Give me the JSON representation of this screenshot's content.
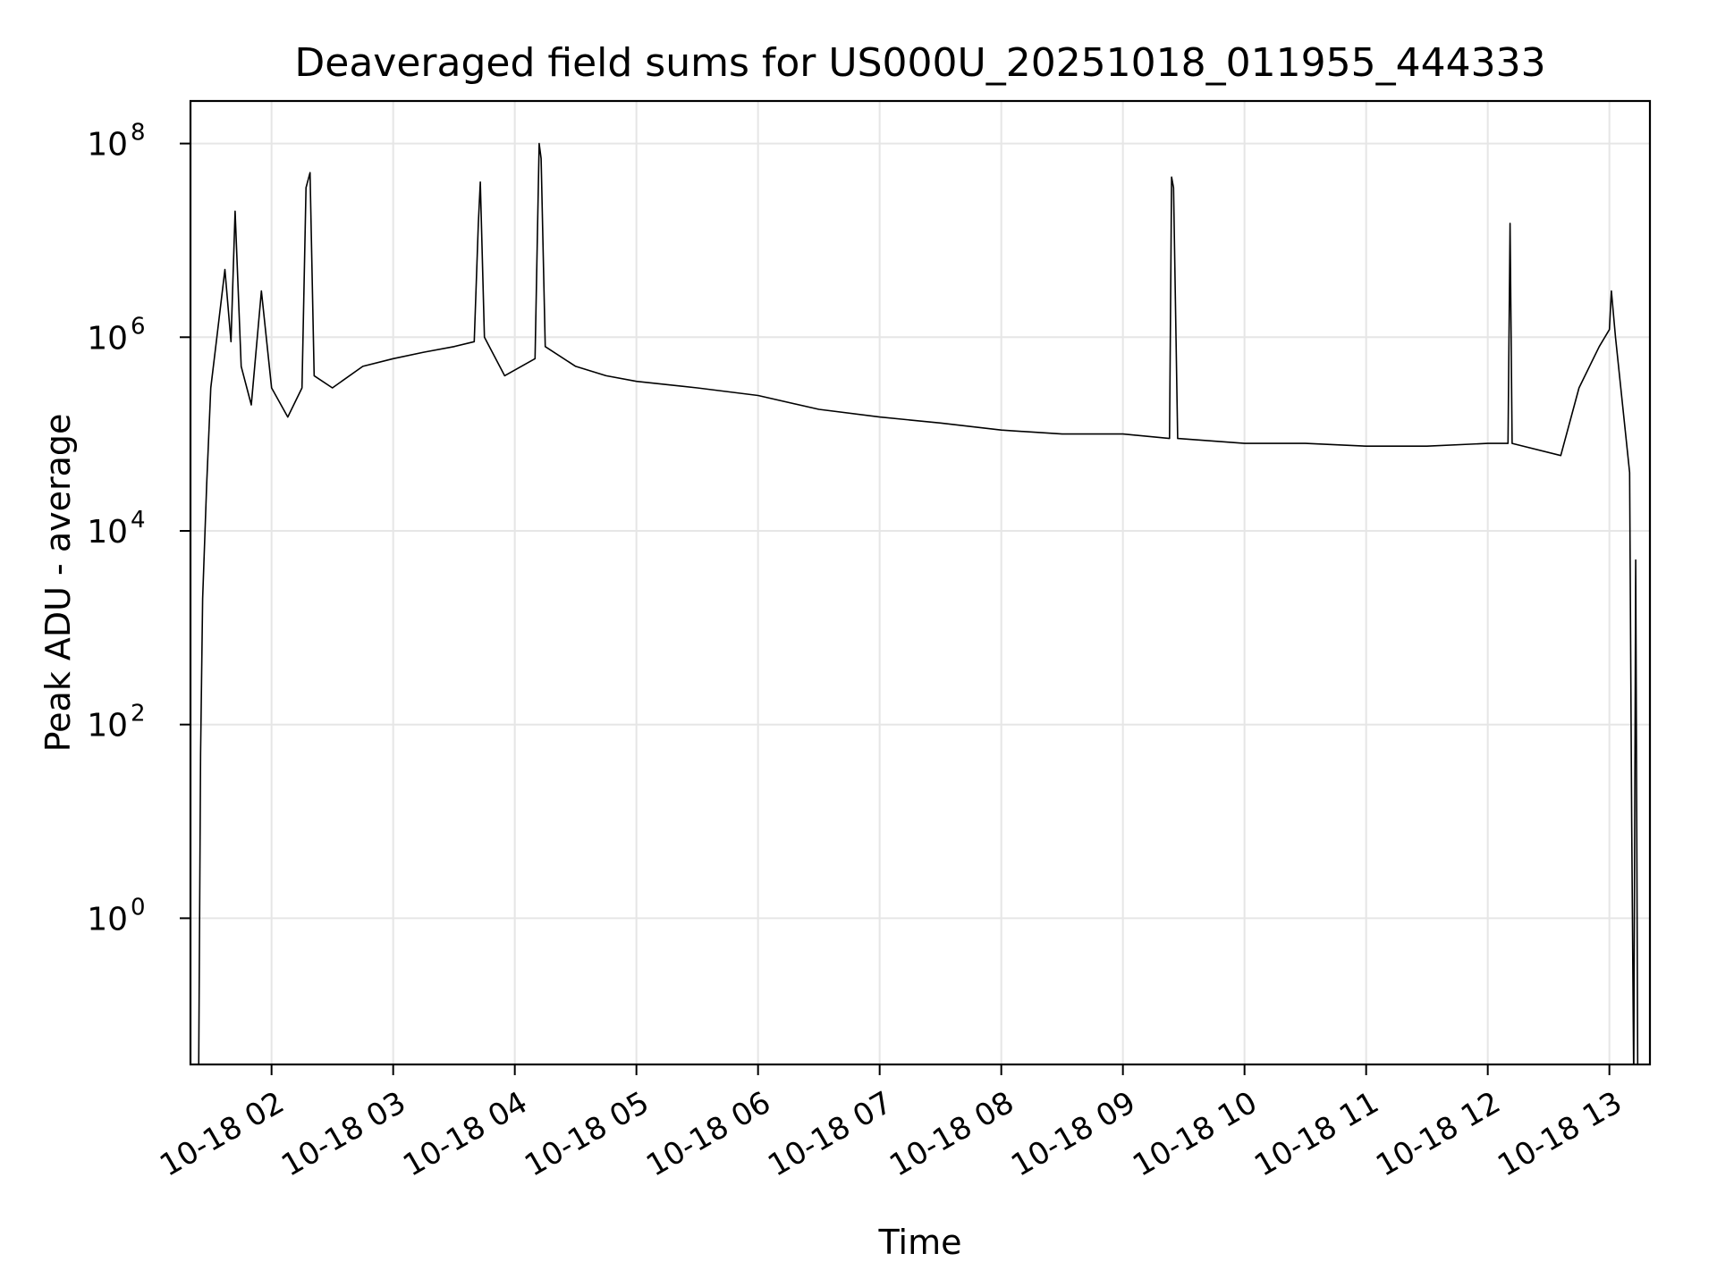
{
  "chart_data": {
    "type": "line",
    "title": "Deaveraged field sums for US000U_20251018_011955_444333",
    "xlabel": "Time",
    "ylabel": "Peak ADU - average",
    "xscale": "time",
    "yscale": "log",
    "xlim": [
      "2025-10-18 01:20",
      "2025-10-18 13:20"
    ],
    "ylim": [
      0.0309,
      275000000
    ],
    "grid": true,
    "legend": "none",
    "line_color": "#000000",
    "x_ticks": [
      "10-18 02",
      "10-18 03",
      "10-18 04",
      "10-18 05",
      "10-18 06",
      "10-18 07",
      "10-18 08",
      "10-18 09",
      "10-18 10",
      "10-18 11",
      "10-18 12",
      "10-18 13"
    ],
    "x_tick_times": [
      "2025-10-18 02:00",
      "2025-10-18 03:00",
      "2025-10-18 04:00",
      "2025-10-18 05:00",
      "2025-10-18 06:00",
      "2025-10-18 07:00",
      "2025-10-18 08:00",
      "2025-10-18 09:00",
      "2025-10-18 10:00",
      "2025-10-18 11:00",
      "2025-10-18 12:00",
      "2025-10-18 13:00"
    ],
    "y_ticks": [
      {
        "value": 1,
        "base": "10",
        "exp": "0"
      },
      {
        "value": 100,
        "base": "10",
        "exp": "2"
      },
      {
        "value": 10000,
        "base": "10",
        "exp": "4"
      },
      {
        "value": 1000000,
        "base": "10",
        "exp": "6"
      },
      {
        "value": 100000000,
        "base": "10",
        "exp": "8"
      }
    ],
    "series": [
      {
        "name": "",
        "points": [
          [
            "2025-10-18 01:24",
            0.02
          ],
          [
            "2025-10-18 01:25",
            50
          ],
          [
            "2025-10-18 01:26",
            2000
          ],
          [
            "2025-10-18 01:28",
            30000
          ],
          [
            "2025-10-18 01:30",
            300000
          ],
          [
            "2025-10-18 01:33",
            1000000
          ],
          [
            "2025-10-18 01:37",
            5000000
          ],
          [
            "2025-10-18 01:40",
            900000
          ],
          [
            "2025-10-18 01:42",
            20000000
          ],
          [
            "2025-10-18 01:45",
            500000
          ],
          [
            "2025-10-18 01:50",
            200000
          ],
          [
            "2025-10-18 01:55",
            3000000
          ],
          [
            "2025-10-18 02:00",
            300000
          ],
          [
            "2025-10-18 02:08",
            150000
          ],
          [
            "2025-10-18 02:15",
            300000
          ],
          [
            "2025-10-18 02:17",
            35000000
          ],
          [
            "2025-10-18 02:19",
            50000000
          ],
          [
            "2025-10-18 02:21",
            400000
          ],
          [
            "2025-10-18 02:30",
            300000
          ],
          [
            "2025-10-18 02:45",
            500000
          ],
          [
            "2025-10-18 03:00",
            600000
          ],
          [
            "2025-10-18 03:15",
            700000
          ],
          [
            "2025-10-18 03:30",
            800000
          ],
          [
            "2025-10-18 03:40",
            900000
          ],
          [
            "2025-10-18 03:42",
            15000000
          ],
          [
            "2025-10-18 03:43",
            40000000
          ],
          [
            "2025-10-18 03:45",
            1000000
          ],
          [
            "2025-10-18 03:55",
            400000
          ],
          [
            "2025-10-18 04:10",
            600000
          ],
          [
            "2025-10-18 04:12",
            100000000
          ],
          [
            "2025-10-18 04:13",
            70000000
          ],
          [
            "2025-10-18 04:15",
            800000
          ],
          [
            "2025-10-18 04:30",
            500000
          ],
          [
            "2025-10-18 04:45",
            400000
          ],
          [
            "2025-10-18 05:00",
            350000
          ],
          [
            "2025-10-18 05:30",
            300000
          ],
          [
            "2025-10-18 06:00",
            250000
          ],
          [
            "2025-10-18 06:30",
            180000
          ],
          [
            "2025-10-18 07:00",
            150000
          ],
          [
            "2025-10-18 07:30",
            130000
          ],
          [
            "2025-10-18 08:00",
            110000
          ],
          [
            "2025-10-18 08:30",
            100000
          ],
          [
            "2025-10-18 09:00",
            100000
          ],
          [
            "2025-10-18 09:23",
            90000
          ],
          [
            "2025-10-18 09:24",
            45000000
          ],
          [
            "2025-10-18 09:25",
            35000000
          ],
          [
            "2025-10-18 09:27",
            90000
          ],
          [
            "2025-10-18 10:00",
            80000
          ],
          [
            "2025-10-18 10:30",
            80000
          ],
          [
            "2025-10-18 11:00",
            75000
          ],
          [
            "2025-10-18 11:30",
            75000
          ],
          [
            "2025-10-18 12:00",
            80000
          ],
          [
            "2025-10-18 12:10",
            80000
          ],
          [
            "2025-10-18 12:11",
            15000000
          ],
          [
            "2025-10-18 12:12",
            80000
          ],
          [
            "2025-10-18 12:36",
            60000
          ],
          [
            "2025-10-18 12:45",
            300000
          ],
          [
            "2025-10-18 12:55",
            800000
          ],
          [
            "2025-10-18 13:00",
            1200000
          ],
          [
            "2025-10-18 13:01",
            3000000
          ],
          [
            "2025-10-18 13:03",
            1000000
          ],
          [
            "2025-10-18 13:08",
            100000
          ],
          [
            "2025-10-18 13:10",
            40000
          ],
          [
            "2025-10-18 13:11",
            10
          ],
          [
            "2025-10-18 13:12",
            0.02
          ],
          [
            "2025-10-18 13:13",
            5000
          ],
          [
            "2025-10-18 13:14",
            0.02
          ]
        ]
      }
    ]
  }
}
